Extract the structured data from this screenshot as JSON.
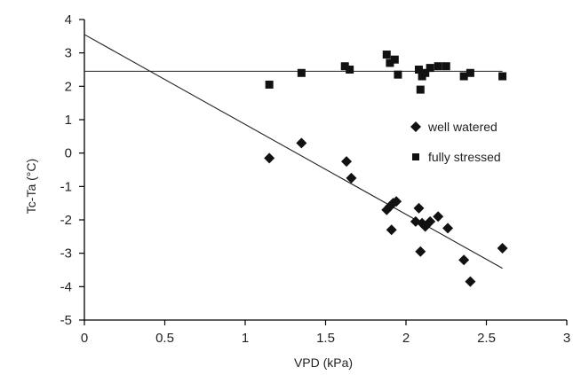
{
  "chart_data": {
    "type": "scatter",
    "title": "",
    "xlabel": "VPD (kPa)",
    "ylabel": "Tc-Ta (°C)",
    "xlim": [
      0,
      3
    ],
    "ylim": [
      -5,
      4
    ],
    "x_ticks": [
      "0",
      "0.5",
      "1",
      "1.5",
      "2",
      "2.5",
      "3"
    ],
    "y_ticks": [
      "4",
      "3",
      "2",
      "1",
      "0",
      "-1",
      "-2",
      "-3",
      "-4",
      "-5"
    ],
    "grid": false,
    "legend_position": "right",
    "series": [
      {
        "name": "well watered",
        "marker": "diamond",
        "color": "#111111",
        "points": [
          [
            1.15,
            -0.15
          ],
          [
            1.35,
            0.3
          ],
          [
            1.63,
            -0.25
          ],
          [
            1.66,
            -0.75
          ],
          [
            1.88,
            -1.7
          ],
          [
            1.9,
            -1.6
          ],
          [
            1.92,
            -1.5
          ],
          [
            1.94,
            -1.45
          ],
          [
            1.91,
            -2.3
          ],
          [
            2.08,
            -1.65
          ],
          [
            2.06,
            -2.05
          ],
          [
            2.1,
            -2.1
          ],
          [
            2.12,
            -2.2
          ],
          [
            2.15,
            -2.05
          ],
          [
            2.2,
            -1.9
          ],
          [
            2.26,
            -2.25
          ],
          [
            2.09,
            -2.95
          ],
          [
            2.36,
            -3.2
          ],
          [
            2.4,
            -3.85
          ],
          [
            2.6,
            -2.85
          ]
        ]
      },
      {
        "name": "fully stressed",
        "marker": "square",
        "color": "#111111",
        "points": [
          [
            1.15,
            2.05
          ],
          [
            1.35,
            2.4
          ],
          [
            1.62,
            2.6
          ],
          [
            1.65,
            2.5
          ],
          [
            1.88,
            2.95
          ],
          [
            1.9,
            2.7
          ],
          [
            1.93,
            2.8
          ],
          [
            1.95,
            2.35
          ],
          [
            2.08,
            2.5
          ],
          [
            2.1,
            2.3
          ],
          [
            2.09,
            1.9
          ],
          [
            2.12,
            2.4
          ],
          [
            2.15,
            2.55
          ],
          [
            2.2,
            2.6
          ],
          [
            2.25,
            2.6
          ],
          [
            2.36,
            2.3
          ],
          [
            2.4,
            2.4
          ],
          [
            2.6,
            2.3
          ]
        ]
      }
    ],
    "fit_lines": [
      {
        "name": "well watered fit",
        "x": [
          0,
          2.6
        ],
        "y": [
          3.55,
          -3.45
        ]
      },
      {
        "name": "fully stressed fit",
        "x": [
          0,
          2.6
        ],
        "y": [
          2.45,
          2.45
        ]
      }
    ]
  }
}
